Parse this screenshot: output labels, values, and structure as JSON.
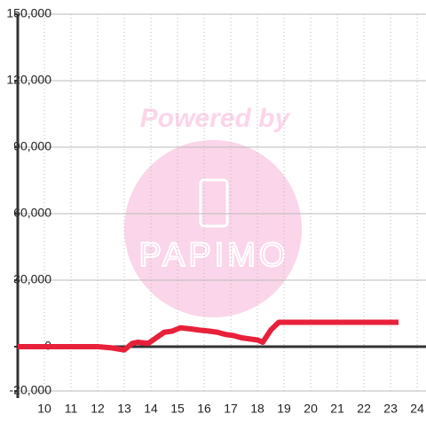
{
  "chart_data": {
    "type": "line",
    "watermark": [
      "Powered by",
      "PAPIMO"
    ],
    "x": [
      9,
      12,
      12.5,
      13,
      13.3,
      13.5,
      13.9,
      14.2,
      14.5,
      14.8,
      15.1,
      15.5,
      15.8,
      16.2,
      16.5,
      16.8,
      17.1,
      17.4,
      17.7,
      18,
      18.2,
      18.5,
      18.8,
      23.3
    ],
    "series": [
      {
        "color": "#e8203a",
        "values": [
          0,
          0,
          -500,
          -1500,
          1500,
          2000,
          1500,
          4000,
          6500,
          7000,
          8500,
          8000,
          7500,
          7000,
          6500,
          5500,
          5000,
          4000,
          3500,
          3000,
          2000,
          7500,
          11000,
          11000
        ]
      }
    ],
    "xlim": [
      9,
      24.33
    ],
    "ylim": [
      -20000,
      150000
    ],
    "xticks": [
      10,
      11,
      12,
      13,
      14,
      15,
      16,
      17,
      18,
      19,
      20,
      21,
      22,
      23,
      24
    ],
    "yticks": [
      {
        "value": -20000,
        "label": "-20,000"
      },
      0,
      {
        "value": 30000,
        "label": "30,000"
      },
      {
        "value": 60000,
        "label": "60,000"
      },
      {
        "value": 90000,
        "label": "90,000"
      },
      {
        "value": 120000,
        "label": "120,000"
      },
      {
        "value": 150000,
        "label": "150,000"
      }
    ],
    "grid": true
  }
}
